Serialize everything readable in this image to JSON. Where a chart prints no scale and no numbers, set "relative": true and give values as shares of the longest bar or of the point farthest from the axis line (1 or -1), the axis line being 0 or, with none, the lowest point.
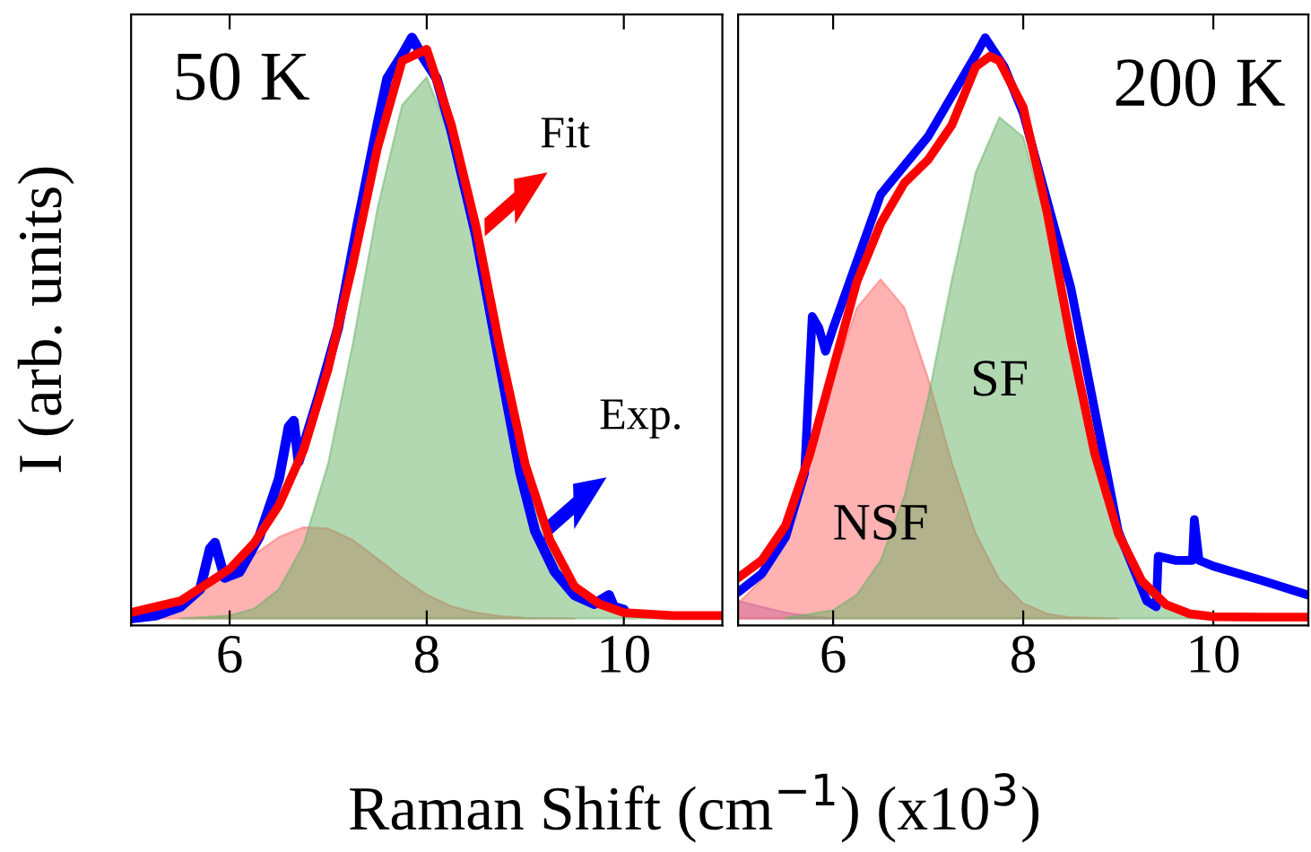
{
  "chart_data": [
    {
      "type": "line",
      "relative": true,
      "ylabel": "I (arb. units)",
      "xlabel": "Raman Shift (cm$^{−1}$) (x10$^{3}$)",
      "xlim": [
        5,
        11
      ],
      "xticks": [
        6,
        8,
        10
      ],
      "tick_labels": "x",
      "legend": false,
      "annotations": [
        "50 K"
      ],
      "series": [
        {
          "type": "area",
          "color": "#ff6666",
          "x": [
            5,
            5.5,
            6,
            6.25,
            6.5,
            6.75,
            7,
            7.25,
            7.5,
            7.75,
            8,
            8.25,
            8.5,
            8.75,
            9,
            9.5
          ],
          "values": [
            0.005,
            0.025,
            0.076,
            0.11,
            0.14,
            0.157,
            0.155,
            0.135,
            0.103,
            0.07,
            0.041,
            0.021,
            0.01,
            0.004,
            0.001,
            0
          ]
        },
        {
          "type": "area",
          "color": "#66b266",
          "x": [
            5.5,
            6,
            6.25,
            6.5,
            6.75,
            7,
            7.25,
            7.5,
            7.75,
            8,
            8.25,
            8.5,
            8.75,
            9,
            9.25,
            9.5,
            9.75,
            10,
            10.5
          ],
          "values": [
            0,
            0.005,
            0.017,
            0.05,
            0.127,
            0.267,
            0.473,
            0.706,
            0.884,
            0.932,
            0.825,
            0.66,
            0.45,
            0.26,
            0.13,
            0.05,
            0.02,
            0.005,
            0
          ]
        },
        {
          "type": "line",
          "name": "Exp.",
          "color": "#0000ff",
          "x": [
            5,
            5.25,
            5.5,
            5.7,
            5.8,
            5.85,
            5.95,
            6.1,
            6.3,
            6.5,
            6.6,
            6.65,
            6.7,
            6.9,
            7.1,
            7.3,
            7.5,
            7.6,
            7.75,
            7.85,
            7.95,
            8.1,
            8.25,
            8.5,
            8.75,
            8.95,
            9.1,
            9.3,
            9.5,
            9.7,
            9.85,
            9.9,
            10
          ],
          "values": [
            0,
            0.005,
            0.02,
            0.05,
            0.12,
            0.13,
            0.07,
            0.08,
            0.14,
            0.24,
            0.33,
            0.34,
            0.27,
            0.38,
            0.5,
            0.68,
            0.85,
            0.93,
            0.97,
            1,
            0.97,
            0.93,
            0.84,
            0.66,
            0.43,
            0.25,
            0.15,
            0.08,
            0.04,
            0.025,
            0.04,
            0.02,
            0.015
          ]
        },
        {
          "type": "line",
          "name": "Fit",
          "color": "#ff0000",
          "x": [
            5,
            5.5,
            6,
            6.25,
            6.5,
            6.75,
            7,
            7.25,
            7.5,
            7.75,
            8,
            8.25,
            8.5,
            8.75,
            9,
            9.25,
            9.5,
            9.75,
            10,
            10.5,
            11
          ],
          "values": [
            0.01,
            0.03,
            0.085,
            0.13,
            0.195,
            0.29,
            0.43,
            0.61,
            0.81,
            0.96,
            0.98,
            0.85,
            0.675,
            0.46,
            0.265,
            0.135,
            0.055,
            0.025,
            0.01,
            0.005,
            0.005
          ]
        }
      ]
    },
    {
      "type": "line",
      "relative": true,
      "xlim": [
        5,
        11
      ],
      "xticks": [
        6,
        8,
        10
      ],
      "tick_labels": "x",
      "legend": false,
      "annotations": [
        "200 K"
      ],
      "series": [
        {
          "type": "area",
          "color": "#9966cc",
          "x": [
            5,
            5.25,
            5.5,
            5.75,
            6
          ],
          "values": [
            0.03,
            0.02,
            0.01,
            0.004,
            0
          ]
        },
        {
          "type": "area",
          "name": "NSF",
          "color": "#ff6666",
          "x": [
            5,
            5.25,
            5.5,
            5.75,
            6,
            6.25,
            6.5,
            6.75,
            7,
            7.25,
            7.5,
            7.75,
            8,
            8.25,
            8.5,
            9
          ],
          "values": [
            0.026,
            0.067,
            0.146,
            0.268,
            0.413,
            0.535,
            0.584,
            0.535,
            0.413,
            0.268,
            0.146,
            0.067,
            0.026,
            0.008,
            0.002,
            0
          ]
        },
        {
          "type": "area",
          "name": "SF",
          "color": "#66b266",
          "x": [
            5.5,
            6,
            6.25,
            6.5,
            6.75,
            7,
            7.25,
            7.5,
            7.75,
            8,
            8.25,
            8.5,
            8.75,
            9,
            9.25,
            9.5,
            9.75,
            10,
            10.5
          ],
          "values": [
            0.001,
            0.014,
            0.041,
            0.1,
            0.211,
            0.38,
            0.584,
            0.768,
            0.863,
            0.829,
            0.679,
            0.476,
            0.285,
            0.146,
            0.064,
            0.024,
            0.008,
            0.002,
            0
          ]
        },
        {
          "type": "line",
          "color": "#0000ff",
          "x": [
            5,
            5.25,
            5.5,
            5.7,
            5.78,
            5.85,
            5.92,
            6,
            6.5,
            7,
            7.5,
            7.6,
            7.8,
            8,
            8.5,
            9,
            9.3,
            9.4,
            9.42,
            9.6,
            9.78,
            9.8,
            9.85,
            10,
            10.5,
            11
          ],
          "values": [
            0.045,
            0.077,
            0.14,
            0.25,
            0.52,
            0.5,
            0.46,
            0.5,
            0.73,
            0.83,
            0.97,
            1,
            0.95,
            0.87,
            0.57,
            0.15,
            0.03,
            0.02,
            0.107,
            0.1,
            0.1,
            0.17,
            0.1,
            0.09,
            0.066,
            0.04
          ]
        },
        {
          "type": "line",
          "color": "#ff0000",
          "x": [
            5,
            5.25,
            5.5,
            5.75,
            6,
            6.25,
            6.5,
            6.75,
            7,
            7.25,
            7.5,
            7.65,
            7.75,
            8,
            8.25,
            8.5,
            8.75,
            9,
            9.25,
            9.5,
            9.75,
            10,
            10.5,
            11
          ],
          "values": [
            0.07,
            0.1,
            0.16,
            0.28,
            0.43,
            0.58,
            0.68,
            0.75,
            0.79,
            0.85,
            0.95,
            0.968,
            0.96,
            0.88,
            0.7,
            0.48,
            0.285,
            0.146,
            0.064,
            0.024,
            0.008,
            0.003,
            0.002,
            0.002
          ]
        }
      ]
    }
  ]
}
